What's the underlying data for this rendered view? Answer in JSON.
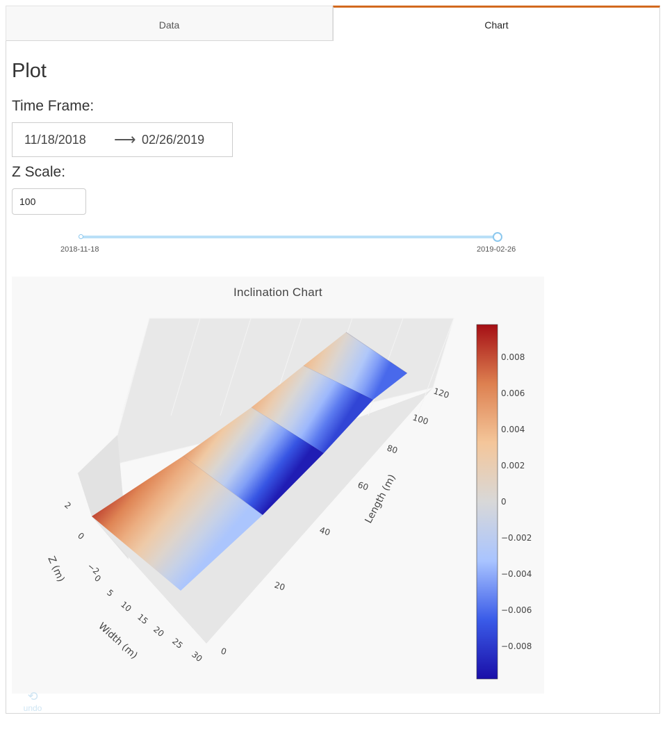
{
  "tabs": [
    {
      "label": "Data",
      "active": false
    },
    {
      "label": "Chart",
      "active": true
    }
  ],
  "page": {
    "title": "Plot"
  },
  "time_frame": {
    "label": "Time Frame:",
    "start": "11/18/2018",
    "arrow": "⟶",
    "end": "02/26/2019"
  },
  "z_scale": {
    "label": "Z Scale:",
    "value": "100"
  },
  "slider": {
    "min_label": "2018-11-18",
    "max_label": "2019-02-26",
    "range": [
      0,
      1
    ]
  },
  "undo": {
    "label": "undo",
    "icon": "undo-icon"
  },
  "colors": {
    "accent": "#d2691e",
    "slider": "#b9e0f7"
  },
  "chart_data": {
    "type": "surface3d",
    "title": "Inclination Chart",
    "axes": {
      "x": {
        "title": "Width (m)",
        "ticks": [
          "0",
          "5",
          "10",
          "15",
          "20",
          "25",
          "30"
        ]
      },
      "y": {
        "title": "Length (m)",
        "ticks": [
          "0",
          "20",
          "40",
          "60",
          "80",
          "100",
          "120"
        ]
      },
      "z": {
        "title": "Z (m)",
        "ticks": [
          "−2",
          "0",
          "2"
        ]
      }
    },
    "colorbar": {
      "range": [
        -0.0098,
        0.0098
      ],
      "ticks": [
        "0.008",
        "0.006",
        "0.004",
        "0.002",
        "0",
        "−0.002",
        "−0.004",
        "−0.006",
        "−0.008"
      ],
      "colorscale": [
        "#1a0fa8",
        "#3a5be8",
        "#a9c4ff",
        "#d8d8d8",
        "#f4c69a",
        "#dd8050",
        "#a50f15"
      ]
    },
    "ridge_values": [
      0.0082,
      0.0052,
      0.0041,
      0.0038
    ],
    "base_values": [
      -0.0031,
      -0.0092,
      -0.0075,
      -0.0061
    ]
  }
}
